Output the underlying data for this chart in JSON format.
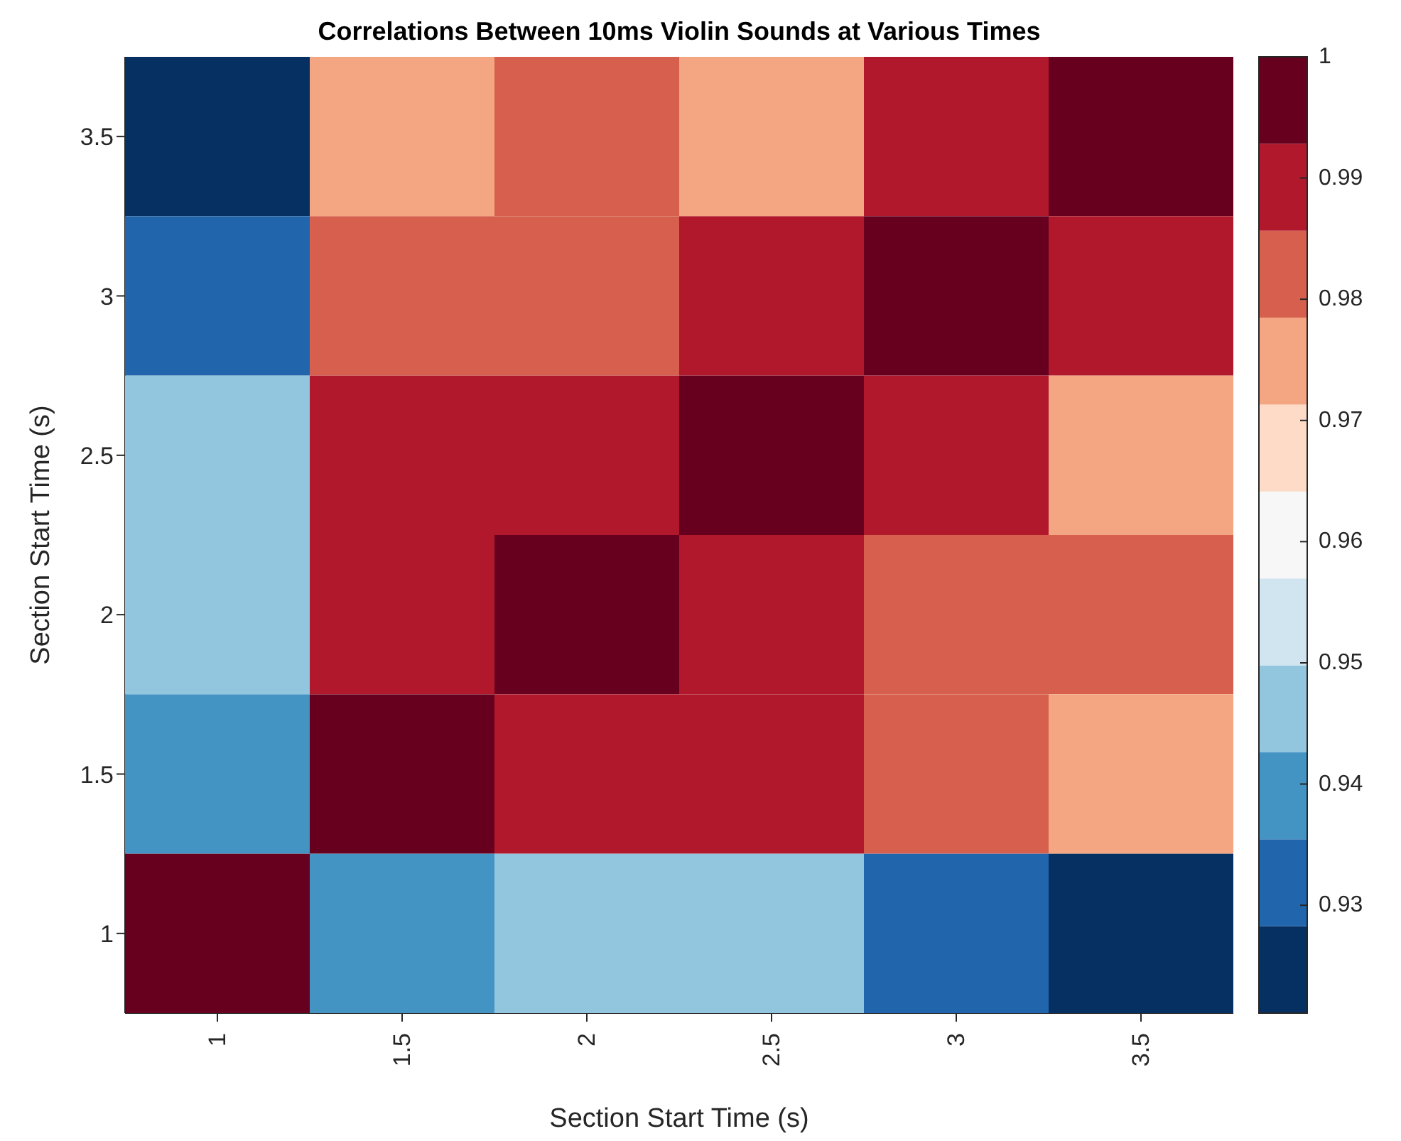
{
  "chart_data": {
    "type": "heatmap",
    "title": "Correlations Between 10ms Violin Sounds at Various Times",
    "xlabel": "Section Start Time (s)",
    "ylabel": "Section Start Time (s)",
    "categories": [
      "1",
      "1.5",
      "2",
      "2.5",
      "3",
      "3.5"
    ],
    "y_categories": [
      "3.5",
      "3",
      "2.5",
      "2",
      "1.5",
      "1"
    ],
    "cells": [
      [
        0.925,
        0.975,
        0.982,
        0.975,
        0.989,
        0.996
      ],
      [
        0.932,
        0.982,
        0.982,
        0.989,
        0.996,
        0.989
      ],
      [
        0.946,
        0.989,
        0.989,
        0.996,
        0.989,
        0.975
      ],
      [
        0.946,
        0.989,
        0.996,
        0.989,
        0.982,
        0.982
      ],
      [
        0.939,
        0.996,
        0.989,
        0.989,
        0.982,
        0.975
      ],
      [
        0.996,
        0.939,
        0.946,
        0.946,
        0.932,
        0.925
      ]
    ],
    "clim": [
      0.9211,
      1
    ],
    "cticks": [
      0.93,
      0.94,
      0.95,
      0.96,
      0.97,
      0.98,
      0.99,
      1
    ]
  }
}
